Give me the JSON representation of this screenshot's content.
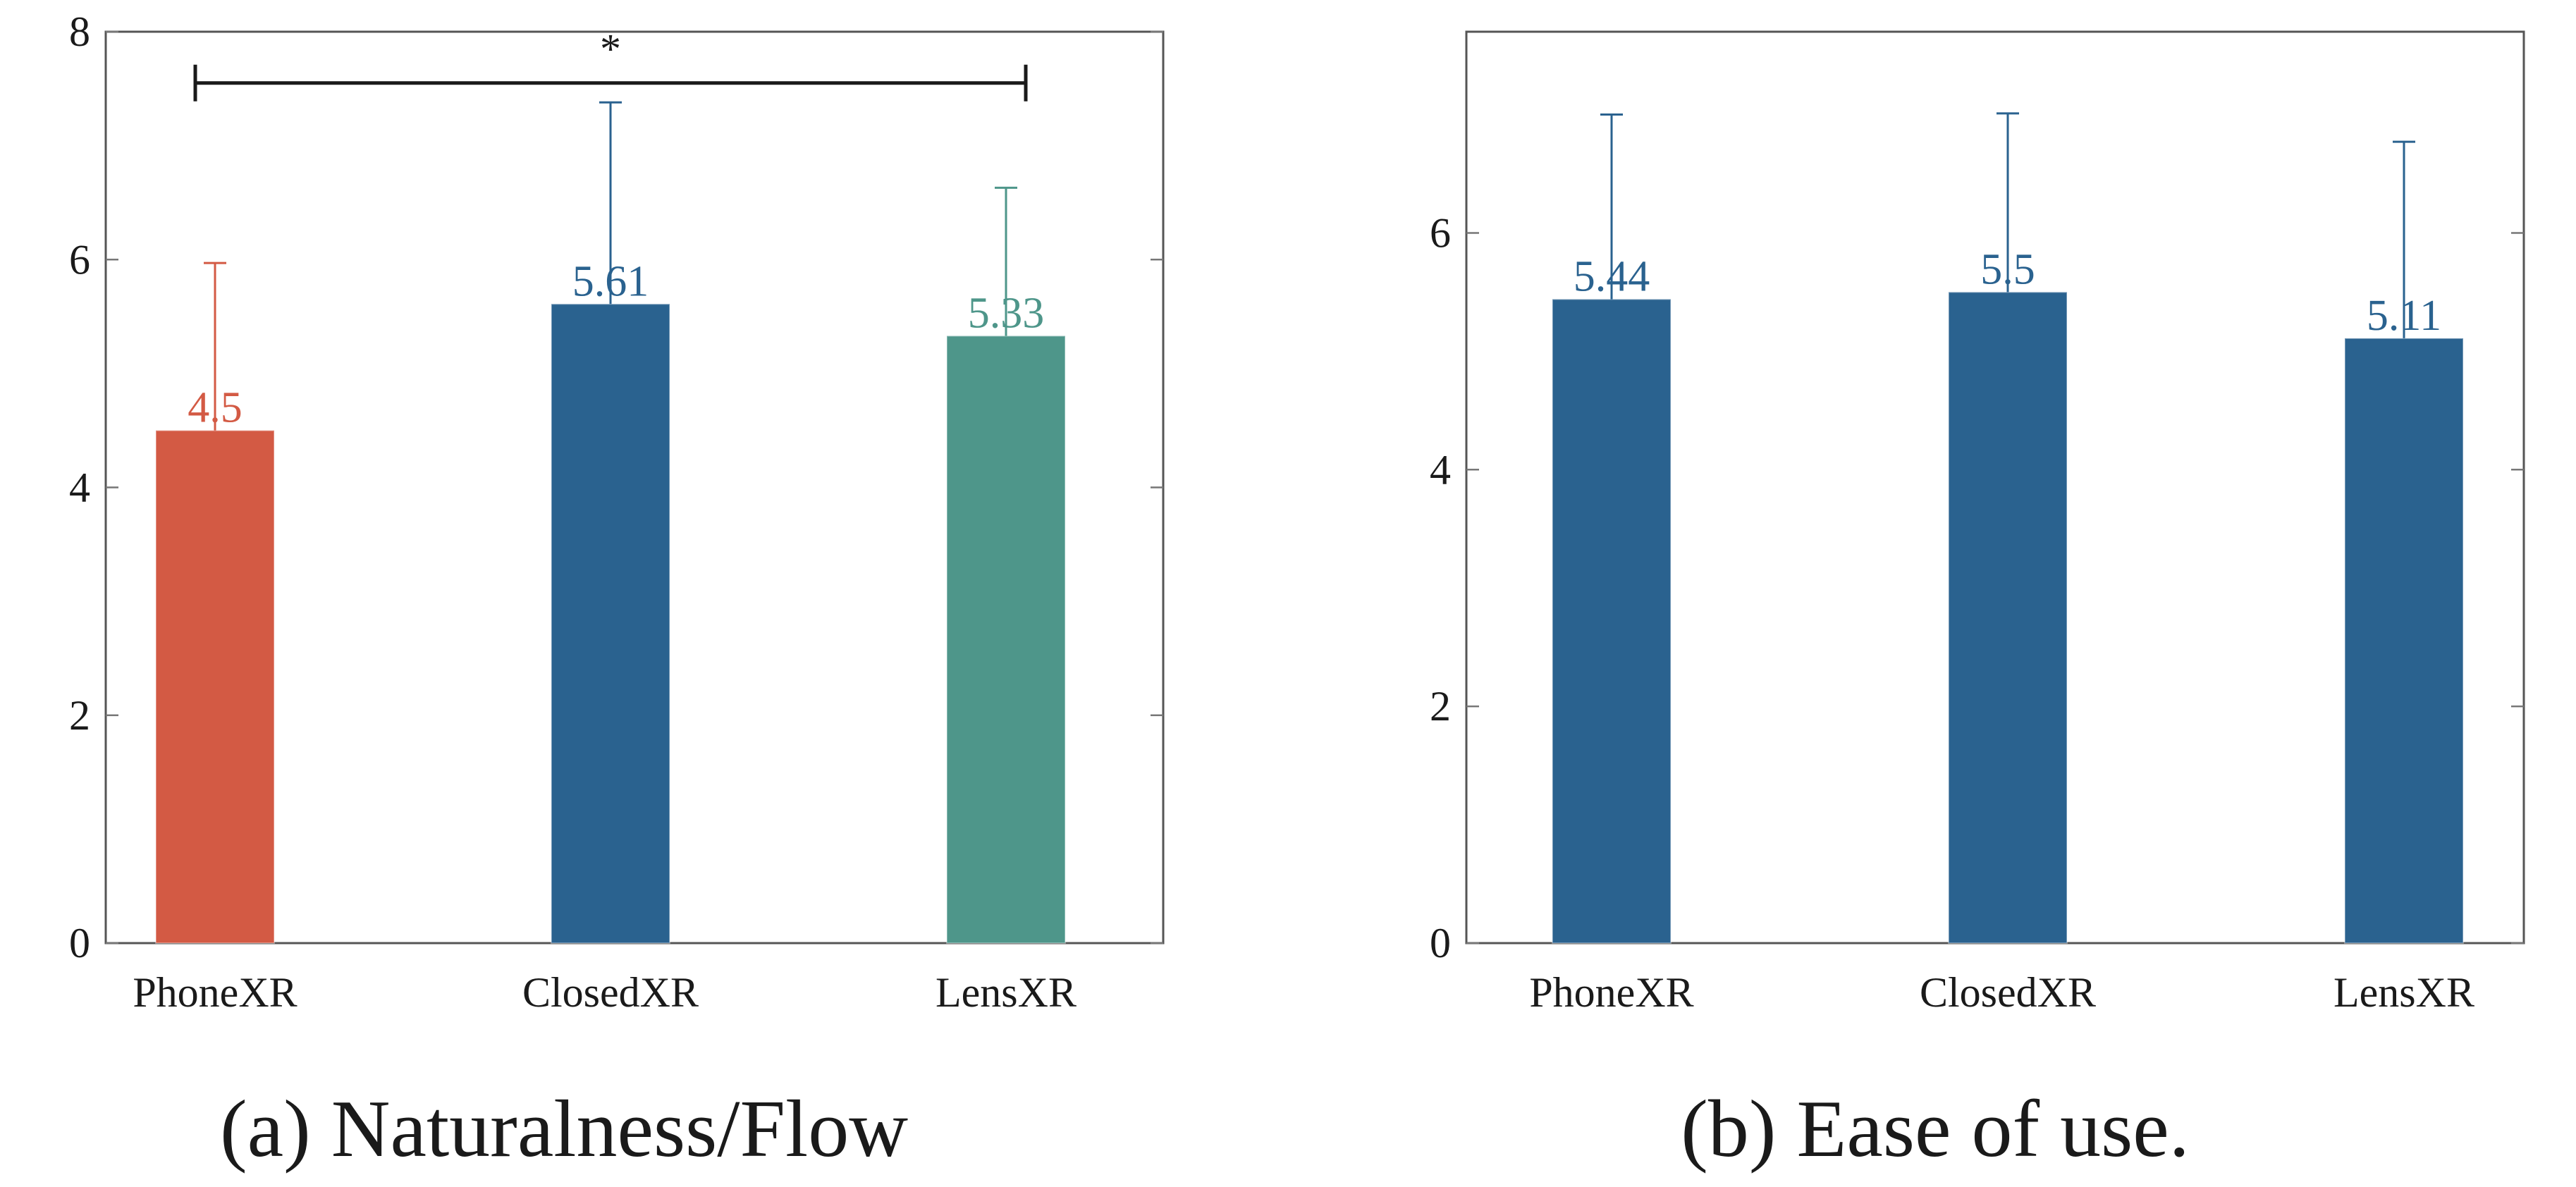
{
  "chart_data": [
    {
      "type": "bar",
      "title": "(a) Naturalness/Flow",
      "categories": [
        "PhoneXR",
        "ClosedXR",
        "LensXR"
      ],
      "values": [
        4.5,
        5.61,
        5.33
      ],
      "value_labels": [
        "4.5",
        "5.61",
        "5.33"
      ],
      "error_upper": [
        5.97,
        7.38,
        6.63
      ],
      "colors": [
        "#d35a44",
        "#2a628f",
        "#4e968a"
      ],
      "label_colors": [
        "#d35a44",
        "#2a628f",
        "#4e968a"
      ],
      "ylim": [
        0,
        8
      ],
      "yticks": [
        0,
        2,
        4,
        6,
        8
      ],
      "ytick_labels": [
        "0",
        "2",
        "4",
        "6",
        "8"
      ],
      "xlabel": "",
      "ylabel": "",
      "significance": {
        "from": "PhoneXR",
        "to": "LensXR",
        "y": 7.55,
        "label": "*"
      }
    },
    {
      "type": "bar",
      "title": "(b) Ease of use.",
      "categories": [
        "PhoneXR",
        "ClosedXR",
        "LensXR"
      ],
      "values": [
        5.44,
        5.5,
        5.11
      ],
      "value_labels": [
        "5.44",
        "5.5",
        "5.11"
      ],
      "error_upper": [
        7.0,
        7.01,
        6.77
      ],
      "colors": [
        "#2a628f",
        "#2a628f",
        "#2a628f"
      ],
      "label_colors": [
        "#2a628f",
        "#2a628f",
        "#2a628f"
      ],
      "ylim": [
        0,
        7.7
      ],
      "yticks": [
        0,
        2,
        4,
        6
      ],
      "ytick_labels": [
        "0",
        "2",
        "4",
        "6"
      ],
      "xlabel": "",
      "ylabel": ""
    }
  ]
}
